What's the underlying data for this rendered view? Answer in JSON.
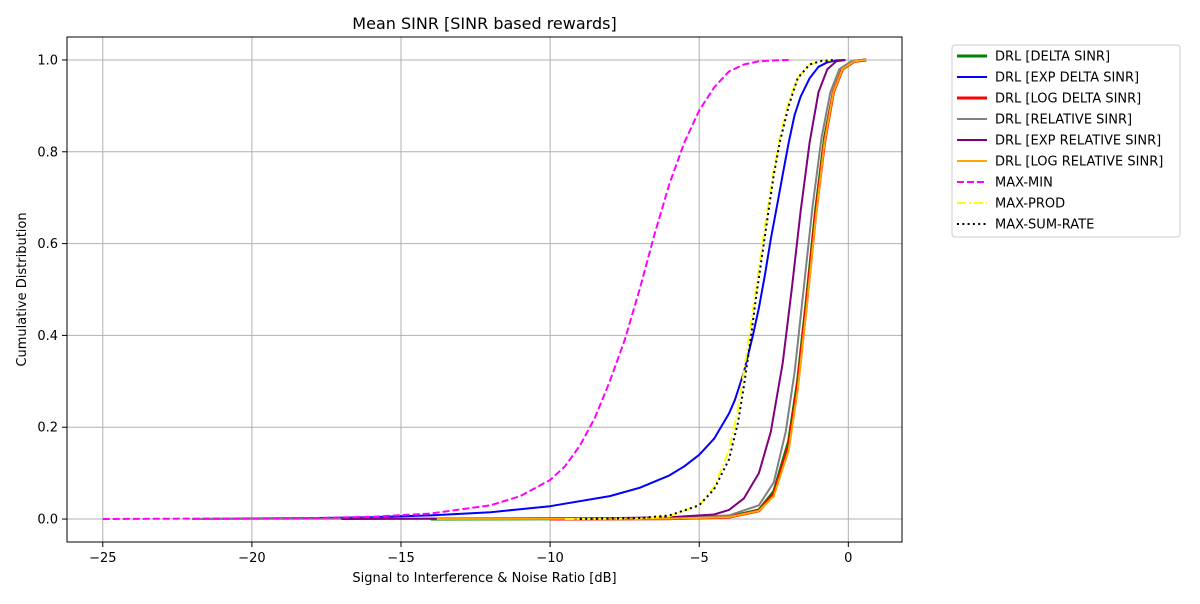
{
  "chart_data": {
    "type": "line",
    "title": "Mean SINR [SINR based rewards]",
    "xlabel": "Signal to Interference & Noise Ratio [dB]",
    "ylabel": "Cumulative Distribution",
    "xlim": [
      -26.2,
      1.8
    ],
    "ylim": [
      -0.05,
      1.05
    ],
    "xticks": [
      -25,
      -20,
      -15,
      -10,
      -5,
      0
    ],
    "xtick_labels": [
      "−25",
      "−20",
      "−15",
      "−10",
      "−5",
      "0"
    ],
    "yticks": [
      0.0,
      0.2,
      0.4,
      0.6,
      0.8,
      1.0
    ],
    "ytick_labels": [
      "0.0",
      "0.2",
      "0.4",
      "0.6",
      "0.8",
      "1.0"
    ],
    "grid": true,
    "legend_position": "outside-top-right",
    "series": [
      {
        "name": "DRL [DELTA SINR]",
        "color": "#008000",
        "style": "solid",
        "width": 3,
        "x": [
          -14,
          -6,
          -4,
          -3,
          -2.5,
          -2,
          -1.7,
          -1.4,
          -1.1,
          -0.8,
          -0.5,
          -0.2,
          0.2,
          0.6
        ],
        "y": [
          0,
          0.001,
          0.005,
          0.02,
          0.06,
          0.17,
          0.3,
          0.48,
          0.67,
          0.83,
          0.93,
          0.98,
          0.997,
          1.0
        ]
      },
      {
        "name": "DRL [EXP DELTA SINR]",
        "color": "#0000ff",
        "style": "solid",
        "width": 2,
        "x": [
          -22,
          -18,
          -16,
          -14,
          -12,
          -10,
          -8,
          -7,
          -6,
          -5.5,
          -5,
          -4.5,
          -4,
          -3.8,
          -3.5,
          -3.2,
          -3,
          -2.8,
          -2.6,
          -2.4,
          -2.2,
          -2,
          -1.8,
          -1.6,
          -1.3,
          -1,
          -0.7,
          -0.4,
          -0.1
        ],
        "y": [
          0,
          0.002,
          0.004,
          0.008,
          0.015,
          0.028,
          0.05,
          0.068,
          0.095,
          0.115,
          0.14,
          0.175,
          0.23,
          0.26,
          0.32,
          0.4,
          0.46,
          0.53,
          0.61,
          0.68,
          0.75,
          0.82,
          0.88,
          0.92,
          0.96,
          0.985,
          0.995,
          0.999,
          1.0
        ]
      },
      {
        "name": "DRL [LOG DELTA SINR]",
        "color": "#ff0000",
        "style": "solid",
        "width": 3,
        "x": [
          -10,
          -6,
          -4,
          -3,
          -2.5,
          -2,
          -1.7,
          -1.4,
          -1.1,
          -0.8,
          -0.5,
          -0.2,
          0.2,
          0.6
        ],
        "y": [
          0,
          0.001,
          0.004,
          0.018,
          0.055,
          0.16,
          0.29,
          0.47,
          0.66,
          0.82,
          0.93,
          0.98,
          0.997,
          1.0
        ]
      },
      {
        "name": "DRL [RELATIVE SINR]",
        "color": "#808080",
        "style": "solid",
        "width": 2,
        "x": [
          -22,
          -14,
          -6,
          -4,
          -3,
          -2.5,
          -2.1,
          -1.8,
          -1.5,
          -1.2,
          -0.9,
          -0.6,
          -0.3,
          0.1,
          0.5
        ],
        "y": [
          0,
          0.001,
          0.002,
          0.008,
          0.03,
          0.08,
          0.19,
          0.32,
          0.5,
          0.68,
          0.83,
          0.93,
          0.98,
          0.997,
          1.0
        ]
      },
      {
        "name": "DRL [EXP RELATIVE SINR]",
        "color": "#800080",
        "style": "solid",
        "width": 2,
        "x": [
          -17,
          -12,
          -8,
          -6,
          -4.5,
          -4,
          -3.5,
          -3,
          -2.6,
          -2.2,
          -1.9,
          -1.6,
          -1.3,
          -1,
          -0.7,
          -0.4,
          -0.1
        ],
        "y": [
          0,
          0.001,
          0.002,
          0.004,
          0.01,
          0.02,
          0.045,
          0.1,
          0.19,
          0.34,
          0.5,
          0.67,
          0.82,
          0.93,
          0.98,
          0.997,
          1.0
        ]
      },
      {
        "name": "DRL [LOG RELATIVE SINR]",
        "color": "#ffa500",
        "style": "solid",
        "width": 2,
        "x": [
          -13.8,
          -6,
          -4,
          -3,
          -2.5,
          -2,
          -1.7,
          -1.4,
          -1.1,
          -0.8,
          -0.5,
          -0.2,
          0.2,
          0.6
        ],
        "y": [
          0,
          0.001,
          0.004,
          0.018,
          0.05,
          0.15,
          0.28,
          0.46,
          0.65,
          0.82,
          0.93,
          0.98,
          0.997,
          1.0
        ]
      },
      {
        "name": "MAX-MIN",
        "color": "#ff00ff",
        "style": "dashed",
        "width": 2,
        "x": [
          -25,
          -18,
          -16,
          -14,
          -12,
          -11,
          -10,
          -9.5,
          -9,
          -8.5,
          -8,
          -7.5,
          -7,
          -6.5,
          -6,
          -5.5,
          -5,
          -4.5,
          -4,
          -3.5,
          -3,
          -2.5,
          -2
        ],
        "y": [
          0,
          0.002,
          0.005,
          0.012,
          0.03,
          0.05,
          0.085,
          0.115,
          0.16,
          0.22,
          0.3,
          0.39,
          0.5,
          0.62,
          0.73,
          0.82,
          0.89,
          0.94,
          0.975,
          0.99,
          0.997,
          0.999,
          1.0
        ]
      },
      {
        "name": "MAX-PROD",
        "color": "#ffff00",
        "style": "dashdot",
        "width": 2,
        "x": [
          -9.5,
          -7,
          -6,
          -5,
          -4.5,
          -4,
          -3.7,
          -3.5,
          -3.3,
          -3.1,
          -2.9,
          -2.7,
          -2.5,
          -2.3,
          -2,
          -1.7,
          -1.3,
          -0.9,
          -0.5
        ],
        "y": [
          0,
          0.001,
          0.006,
          0.03,
          0.07,
          0.15,
          0.24,
          0.32,
          0.41,
          0.5,
          0.59,
          0.68,
          0.76,
          0.83,
          0.91,
          0.96,
          0.99,
          0.998,
          1.0
        ]
      },
      {
        "name": "MAX-SUM-RATE",
        "color": "#000000",
        "style": "dotted",
        "width": 2,
        "x": [
          -9,
          -7,
          -6,
          -5,
          -4.5,
          -4,
          -3.7,
          -3.5,
          -3.3,
          -3.1,
          -2.9,
          -2.7,
          -2.5,
          -2.3,
          -2,
          -1.7,
          -1.3,
          -0.9,
          -0.5
        ],
        "y": [
          0,
          0.002,
          0.008,
          0.03,
          0.065,
          0.13,
          0.21,
          0.29,
          0.38,
          0.48,
          0.57,
          0.66,
          0.75,
          0.82,
          0.9,
          0.96,
          0.99,
          0.998,
          1.0
        ]
      }
    ]
  }
}
